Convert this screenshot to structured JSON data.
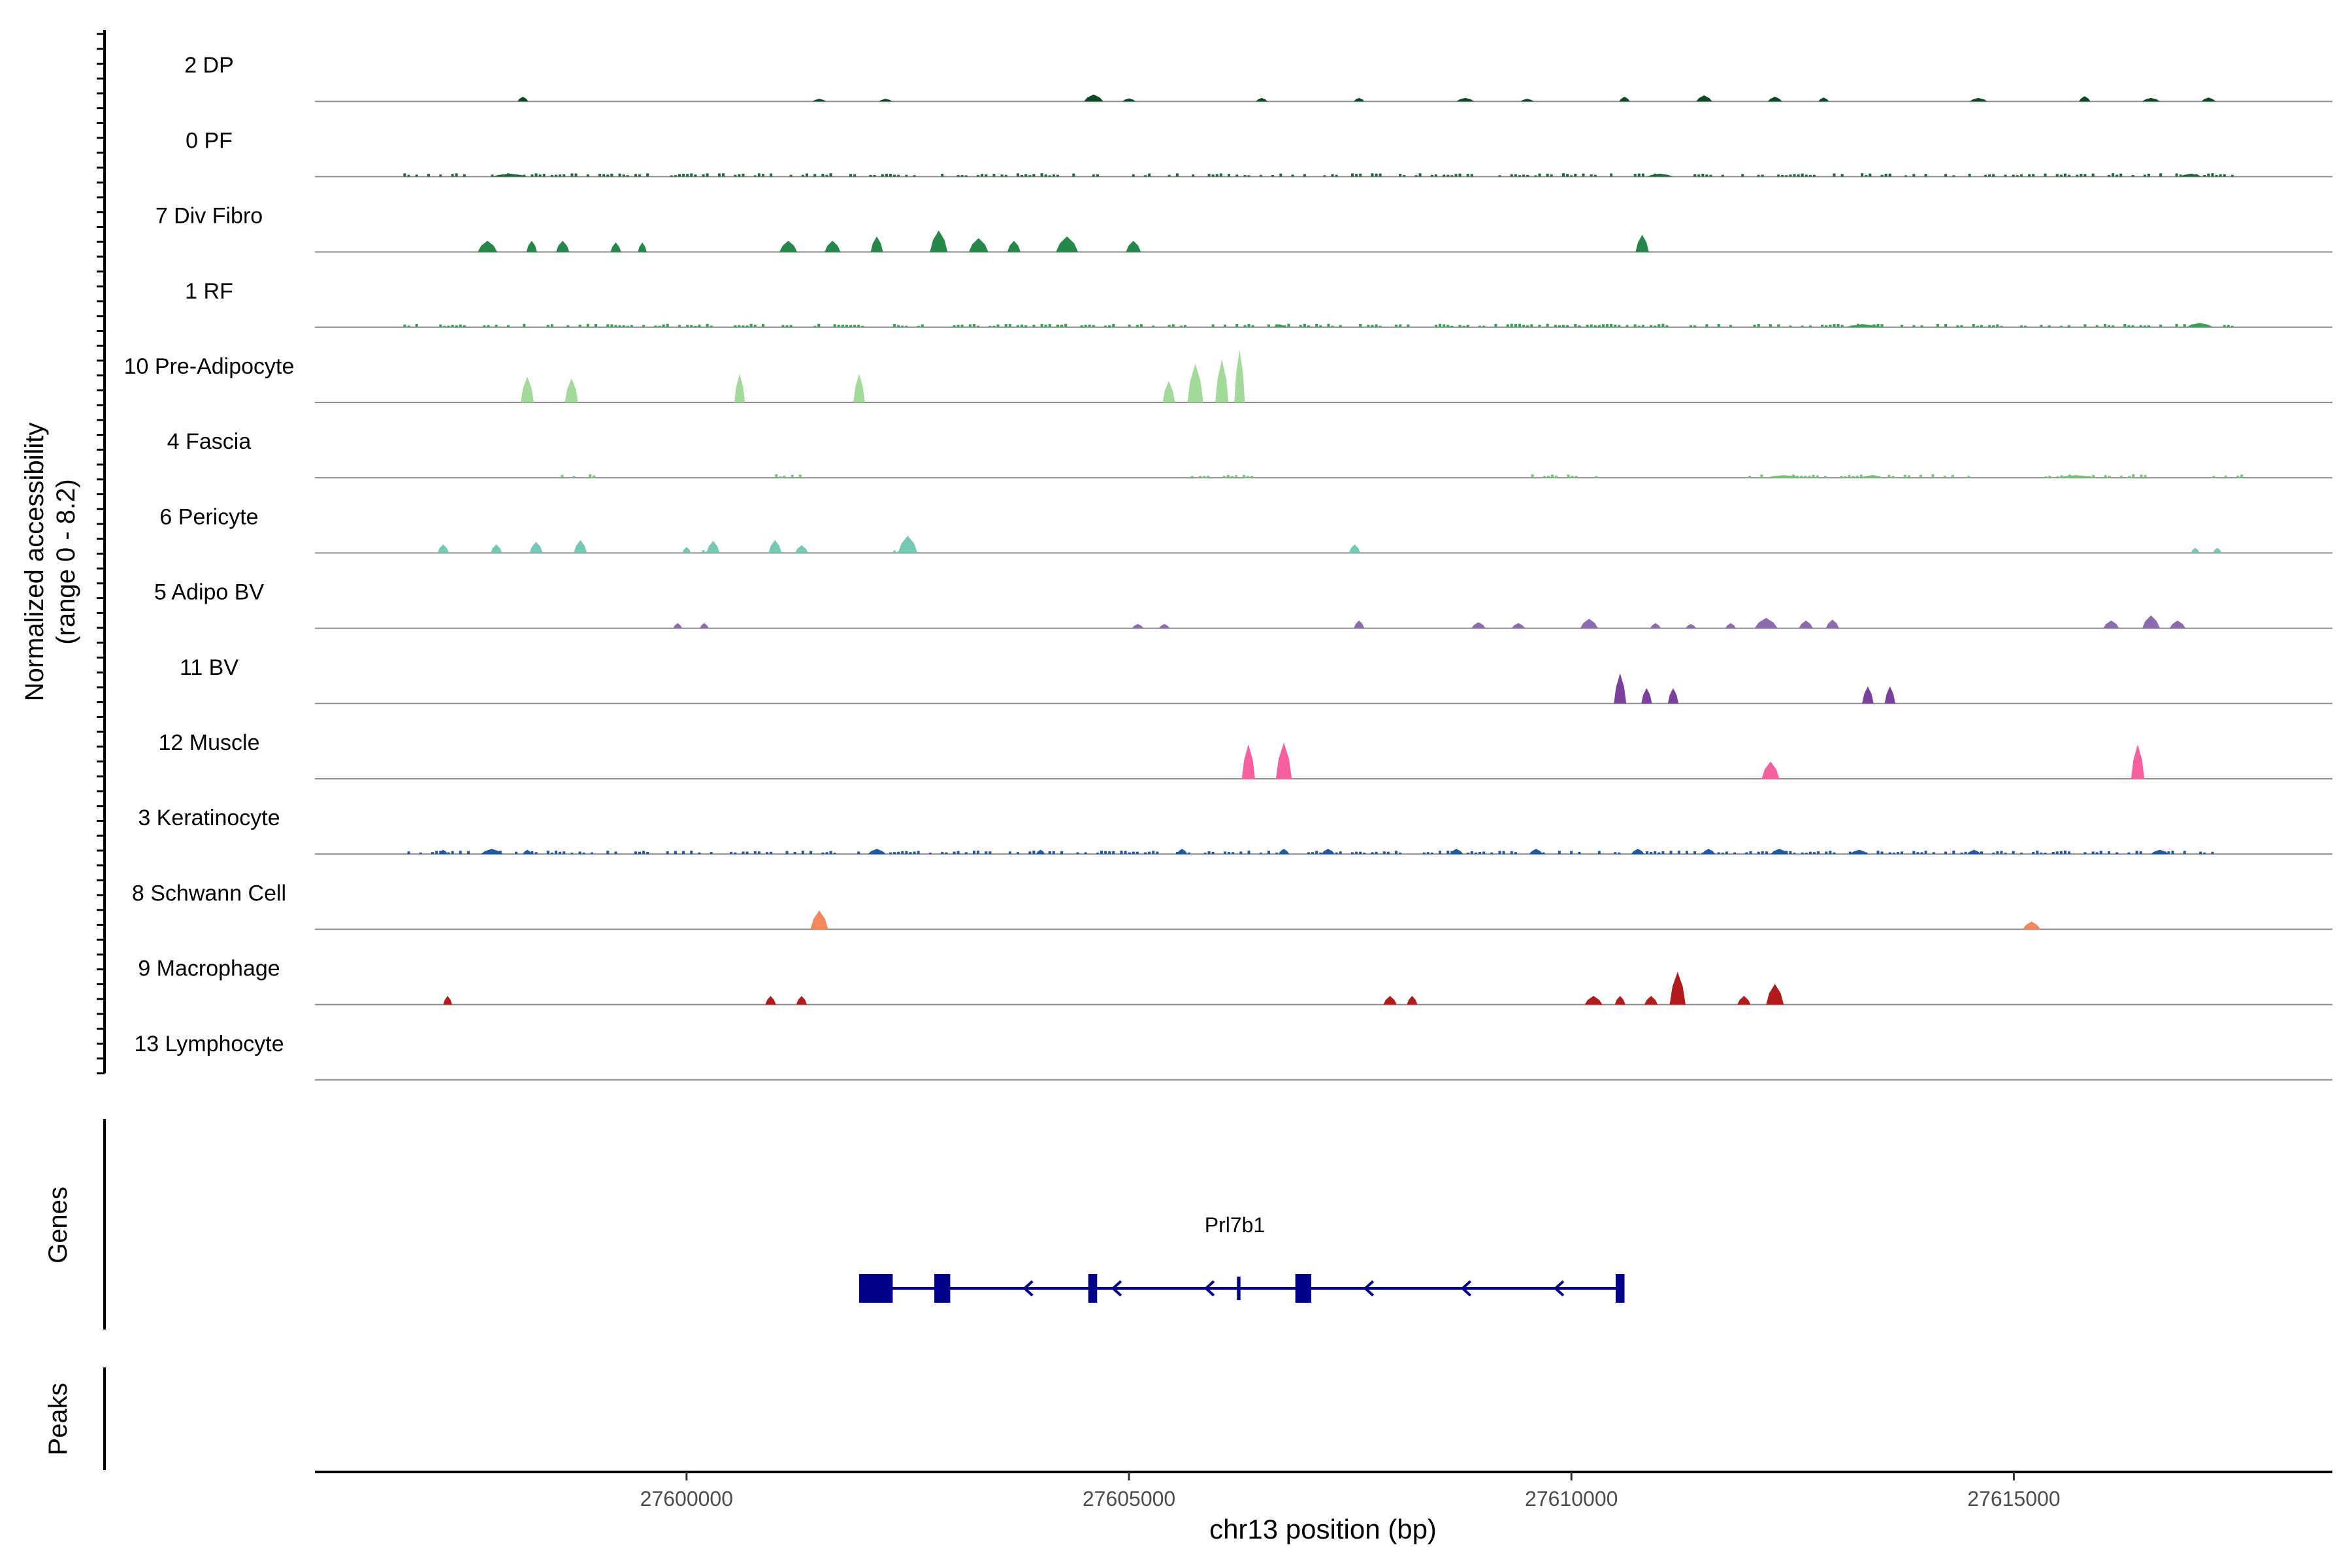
{
  "chart_data": {
    "type": "area",
    "title": "",
    "ylabel_line1": "Normalized accessibility",
    "ylabel_line2": "(range 0 - 8.2)",
    "y_range": [
      0,
      8.2
    ],
    "xlabel": "chr13 position (bp)",
    "x_range": [
      27595800,
      27618600
    ],
    "x_ticks": [
      27600000,
      27605000,
      27610000,
      27615000
    ],
    "x_tick_labels": [
      "27600000",
      "27605000",
      "27610000",
      "27615000"
    ],
    "panels": {
      "genes_label": "Genes",
      "peaks_label": "Peaks"
    },
    "tracks": [
      {
        "name": "2 DP",
        "color": "#0b4a24",
        "peaks": [
          [
            27598150,
            120,
            0.55
          ],
          [
            27601500,
            150,
            0.3
          ],
          [
            27602250,
            150,
            0.3
          ],
          [
            27604600,
            220,
            0.8
          ],
          [
            27605000,
            150,
            0.35
          ],
          [
            27606500,
            130,
            0.4
          ],
          [
            27607600,
            120,
            0.4
          ],
          [
            27608800,
            200,
            0.4
          ],
          [
            27609500,
            150,
            0.3
          ],
          [
            27610600,
            120,
            0.55
          ],
          [
            27611500,
            180,
            0.7
          ],
          [
            27612300,
            160,
            0.55
          ],
          [
            27612850,
            120,
            0.45
          ],
          [
            27614600,
            200,
            0.4
          ],
          [
            27615800,
            130,
            0.6
          ],
          [
            27616550,
            200,
            0.4
          ],
          [
            27617200,
            160,
            0.45
          ]
        ],
        "noise": []
      },
      {
        "name": "0 PF",
        "color": "#1e6b38",
        "peaks": [
          [
            27598000,
            400,
            0.35
          ],
          [
            27611000,
            300,
            0.35
          ],
          [
            27617000,
            250,
            0.35
          ]
        ],
        "noise": [
          [
            27596800,
            27617500
          ]
        ]
      },
      {
        "name": "7 Div Fibro",
        "color": "#23884a",
        "peaks": [
          [
            27597750,
            220,
            1.3
          ],
          [
            27598250,
            120,
            1.3
          ],
          [
            27598600,
            150,
            1.3
          ],
          [
            27599200,
            120,
            1.1
          ],
          [
            27599500,
            100,
            1.1
          ],
          [
            27601150,
            200,
            1.3
          ],
          [
            27601650,
            180,
            1.3
          ],
          [
            27602150,
            140,
            1.8
          ],
          [
            27602850,
            200,
            2.5
          ],
          [
            27603300,
            220,
            1.6
          ],
          [
            27603700,
            150,
            1.3
          ],
          [
            27604300,
            250,
            1.8
          ],
          [
            27605050,
            170,
            1.3
          ],
          [
            27610800,
            150,
            2.0
          ]
        ],
        "noise": []
      },
      {
        "name": "1 RF",
        "color": "#37a155",
        "peaks": [
          [
            27606700,
            130,
            0.35
          ],
          [
            27613300,
            400,
            0.35
          ],
          [
            27617100,
            300,
            0.5
          ]
        ],
        "noise": [
          [
            27596800,
            27617500
          ]
        ]
      },
      {
        "name": "10 Pre-Adipocyte",
        "color": "#a1da99",
        "peaks": [
          [
            27598200,
            150,
            3.0
          ],
          [
            27598700,
            150,
            2.8
          ],
          [
            27600600,
            120,
            3.3
          ],
          [
            27601950,
            130,
            3.3
          ],
          [
            27605450,
            140,
            2.5
          ],
          [
            27605750,
            180,
            4.5
          ],
          [
            27606050,
            150,
            5.0
          ],
          [
            27606250,
            120,
            6.1
          ]
        ],
        "noise": []
      },
      {
        "name": "4 Fascia",
        "color": "#74c476",
        "peaks": [
          [
            27612400,
            400,
            0.3
          ],
          [
            27613400,
            250,
            0.3
          ],
          [
            27615700,
            400,
            0.3
          ]
        ],
        "noise": [
          [
            27598400,
            27599000
          ],
          [
            27601000,
            27601300
          ],
          [
            27605700,
            27606400
          ],
          [
            27609500,
            27610300
          ],
          [
            27612000,
            27614500
          ],
          [
            27615300,
            27616500
          ],
          [
            27617200,
            27617600
          ]
        ]
      },
      {
        "name": "6 Pericyte",
        "color": "#74c8b4",
        "peaks": [
          [
            27597250,
            130,
            1.0
          ],
          [
            27597850,
            130,
            1.0
          ],
          [
            27598300,
            150,
            1.3
          ],
          [
            27598800,
            150,
            1.5
          ],
          [
            27600000,
            100,
            0.7
          ],
          [
            27600300,
            150,
            1.4
          ],
          [
            27601000,
            150,
            1.5
          ],
          [
            27601300,
            150,
            0.9
          ],
          [
            27602500,
            220,
            2.0
          ],
          [
            27607550,
            130,
            1.0
          ],
          [
            27617050,
            100,
            0.6
          ],
          [
            27617300,
            100,
            0.6
          ]
        ],
        "noise": [
          [
            27599950,
            27600350
          ],
          [
            27602200,
            27602500
          ]
        ]
      },
      {
        "name": "5 Adipo BV",
        "color": "#8c6bb1",
        "peaks": [
          [
            27599900,
            100,
            0.6
          ],
          [
            27600200,
            100,
            0.6
          ],
          [
            27605100,
            130,
            0.5
          ],
          [
            27605400,
            120,
            0.5
          ],
          [
            27607600,
            120,
            0.9
          ],
          [
            27608950,
            160,
            0.7
          ],
          [
            27609400,
            150,
            0.6
          ],
          [
            27610200,
            200,
            1.1
          ],
          [
            27610950,
            120,
            0.6
          ],
          [
            27611350,
            120,
            0.5
          ],
          [
            27611800,
            120,
            0.6
          ],
          [
            27612200,
            260,
            1.2
          ],
          [
            27612650,
            160,
            0.9
          ],
          [
            27612950,
            150,
            1.0
          ],
          [
            27616100,
            180,
            0.9
          ],
          [
            27616550,
            200,
            1.5
          ],
          [
            27616850,
            180,
            0.9
          ]
        ],
        "noise": []
      },
      {
        "name": "11 BV",
        "color": "#7b3f9e",
        "peaks": [
          [
            27610550,
            140,
            3.5
          ],
          [
            27610850,
            120,
            1.8
          ],
          [
            27611150,
            120,
            1.8
          ],
          [
            27613350,
            130,
            2.0
          ],
          [
            27613600,
            120,
            2.0
          ]
        ],
        "noise": []
      },
      {
        "name": "12 Muscle",
        "color": "#f75f9e",
        "peaks": [
          [
            27606350,
            150,
            4.0
          ],
          [
            27606750,
            180,
            4.2
          ],
          [
            27612250,
            200,
            2.0
          ],
          [
            27616400,
            150,
            4.0
          ]
        ],
        "noise": []
      },
      {
        "name": "3 Keratinocyte",
        "color": "#1f5aa5",
        "peaks": [
          [
            27597250,
            100,
            0.5
          ],
          [
            27597800,
            250,
            0.6
          ],
          [
            27598200,
            100,
            0.5
          ],
          [
            27602150,
            200,
            0.6
          ],
          [
            27604000,
            100,
            0.5
          ],
          [
            27605600,
            120,
            0.6
          ],
          [
            27606750,
            120,
            0.6
          ],
          [
            27607250,
            150,
            0.6
          ],
          [
            27608700,
            150,
            0.6
          ],
          [
            27609600,
            150,
            0.6
          ],
          [
            27610750,
            150,
            0.6
          ],
          [
            27611550,
            150,
            0.6
          ],
          [
            27612350,
            200,
            0.6
          ],
          [
            27613250,
            200,
            0.5
          ],
          [
            27614550,
            150,
            0.5
          ],
          [
            27616650,
            200,
            0.5
          ]
        ],
        "noise": [
          [
            27596800,
            27617500
          ]
        ]
      },
      {
        "name": "8 Schwann Cell",
        "color": "#f4875c",
        "peaks": [
          [
            27601500,
            200,
            2.2
          ],
          [
            27615200,
            200,
            0.9
          ]
        ],
        "noise": []
      },
      {
        "name": "9 Macrophage",
        "color": "#b31b1b",
        "peaks": [
          [
            27597300,
            100,
            1.0
          ],
          [
            27600950,
            120,
            1.0
          ],
          [
            27601300,
            120,
            1.0
          ],
          [
            27607950,
            150,
            1.0
          ],
          [
            27608200,
            120,
            1.0
          ],
          [
            27610250,
            200,
            1.0
          ],
          [
            27610550,
            120,
            1.0
          ],
          [
            27610900,
            150,
            1.0
          ],
          [
            27611200,
            180,
            3.8
          ],
          [
            27611950,
            150,
            1.0
          ],
          [
            27612300,
            200,
            2.4
          ]
        ],
        "noise": []
      },
      {
        "name": "13 Lymphocyte",
        "color": "#888888",
        "peaks": [],
        "noise": []
      }
    ],
    "gene": {
      "name": "Prl7b1",
      "color": "#00008b",
      "start": 27601950,
      "end": 27610550,
      "exons": [
        [
          27601950,
          27602330
        ],
        [
          27602800,
          27602980
        ],
        [
          27604540,
          27604640
        ],
        [
          27606880,
          27607060
        ],
        [
          27610500,
          27610600
        ],
        [
          27606220,
          27606260
        ]
      ],
      "arrows": [
        27603850,
        27604850,
        27605900,
        27607700,
        27608800,
        27609850
      ]
    }
  }
}
